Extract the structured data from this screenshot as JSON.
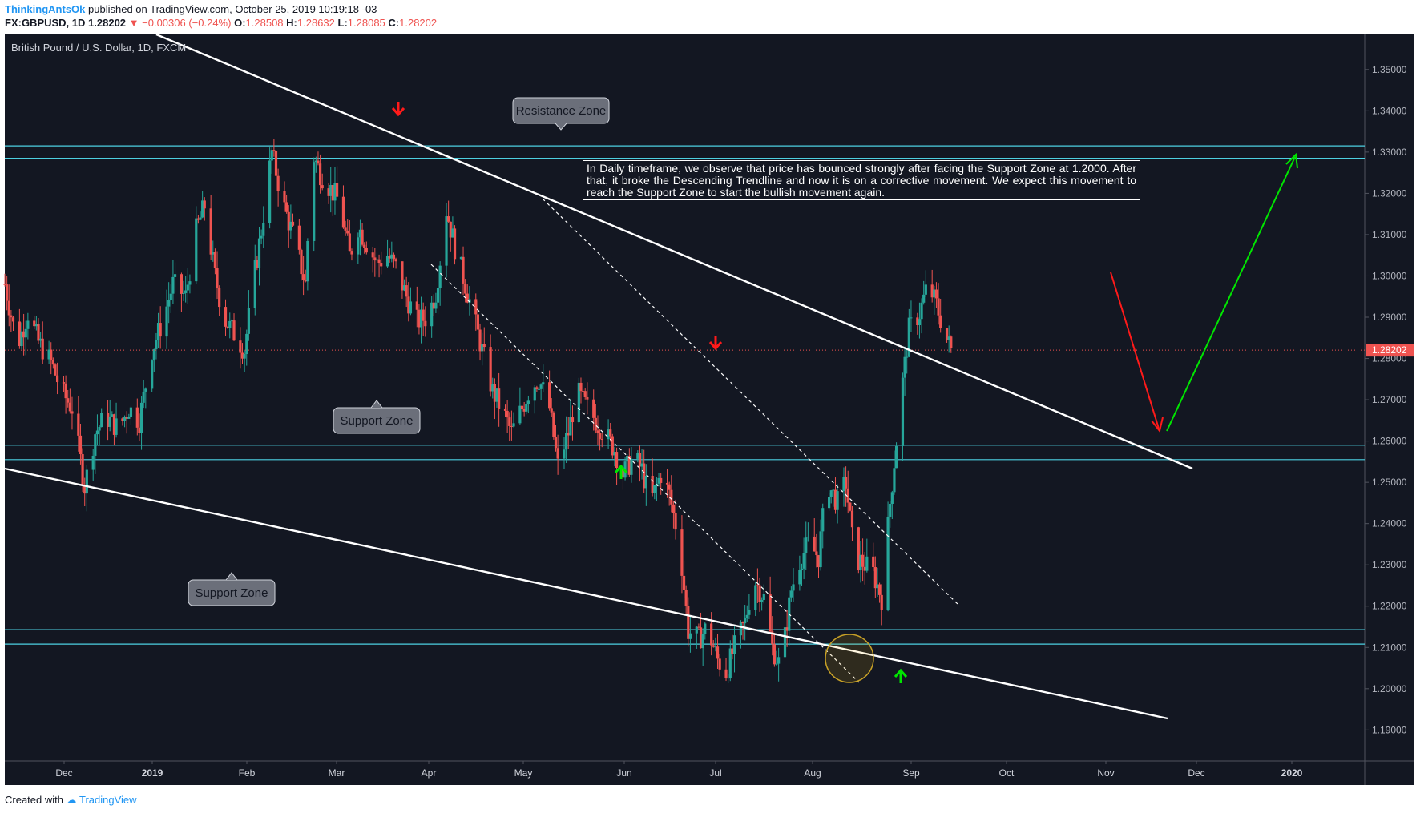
{
  "header": {
    "author": "ThinkingAntsOk",
    "published": "published on TradingView.com, October 25, 2019 10:19:18 -03",
    "symbol": "FX:GBPUSD, 1D",
    "last": "1.28202",
    "change": "▼ −0.00306 (−0.24%)",
    "o_label": "O:",
    "o": "1.28508",
    "h_label": "H:",
    "h": "1.28632",
    "l_label": "L:",
    "l": "1.28085",
    "c_label": "C:",
    "c": "1.28202"
  },
  "legend": "British Pound / U.S. Dollar, 1D, FXCM",
  "footer": {
    "created_with": "Created with",
    "brand": "TradingView"
  },
  "colors": {
    "background": "#131722",
    "up": "#26a69a",
    "down": "#ef5350",
    "zone": "#4dd0e1",
    "trend": "#ffffff",
    "bull_arrow": "#00e600",
    "bear_arrow": "#ff1a1a"
  },
  "chart_data": {
    "type": "candlestick",
    "title": "British Pound / U.S. Dollar, 1D, FXCM",
    "x_ticks": [
      "Dec",
      "2019",
      "Feb",
      "Mar",
      "Apr",
      "May",
      "Jun",
      "Jul",
      "Aug",
      "Sep",
      "Oct",
      "Nov",
      "Dec",
      "2020"
    ],
    "y_ticks": [
      "1.35000",
      "1.34000",
      "1.33000",
      "1.32000",
      "1.31000",
      "1.30000",
      "1.29000",
      "1.28000",
      "1.27000",
      "1.26000",
      "1.25000",
      "1.24000",
      "1.23000",
      "1.22000",
      "1.21000",
      "1.20000",
      "1.19000"
    ],
    "ylim": [
      1.1825,
      1.3585
    ],
    "last_price": 1.28202,
    "last_price_label": "1.28202",
    "price_path": [
      [
        0,
        1.298
      ],
      [
        6,
        1.283
      ],
      [
        11,
        1.291
      ],
      [
        16,
        1.284
      ],
      [
        22,
        1.279
      ],
      [
        27,
        1.272
      ],
      [
        32,
        1.268
      ],
      [
        38,
        1.249
      ],
      [
        43,
        1.262
      ],
      [
        48,
        1.266
      ],
      [
        54,
        1.263
      ],
      [
        59,
        1.268
      ],
      [
        64,
        1.265
      ],
      [
        70,
        1.282
      ],
      [
        75,
        1.289
      ],
      [
        80,
        1.298
      ],
      [
        86,
        1.295
      ],
      [
        91,
        1.311
      ],
      [
        95,
        1.317
      ],
      [
        100,
        1.3
      ],
      [
        104,
        1.29
      ],
      [
        109,
        1.286
      ],
      [
        114,
        1.282
      ],
      [
        118,
        1.298
      ],
      [
        122,
        1.311
      ],
      [
        127,
        1.33
      ],
      [
        132,
        1.318
      ],
      [
        137,
        1.31
      ],
      [
        143,
        1.298
      ],
      [
        146,
        1.33
      ],
      [
        150,
        1.325
      ],
      [
        155,
        1.321
      ],
      [
        159,
        1.318
      ],
      [
        164,
        1.305
      ],
      [
        168,
        1.312
      ],
      [
        173,
        1.307
      ],
      [
        177,
        1.303
      ],
      [
        182,
        1.305
      ],
      [
        186,
        1.302
      ],
      [
        191,
        1.295
      ],
      [
        196,
        1.289
      ],
      [
        201,
        1.29
      ],
      [
        205,
        1.296
      ],
      [
        210,
        1.316
      ],
      [
        214,
        1.307
      ],
      [
        219,
        1.298
      ],
      [
        223,
        1.29
      ],
      [
        227,
        1.282
      ],
      [
        232,
        1.272
      ],
      [
        237,
        1.267
      ],
      [
        241,
        1.262
      ],
      [
        246,
        1.268
      ],
      [
        250,
        1.273
      ],
      [
        254,
        1.275
      ],
      [
        259,
        1.268
      ],
      [
        263,
        1.254
      ],
      [
        268,
        1.262
      ],
      [
        272,
        1.272
      ],
      [
        277,
        1.268
      ],
      [
        281,
        1.265
      ],
      [
        285,
        1.262
      ],
      [
        290,
        1.258
      ],
      [
        294,
        1.252
      ],
      [
        299,
        1.256
      ],
      [
        303,
        1.253
      ],
      [
        307,
        1.245
      ],
      [
        312,
        1.252
      ],
      [
        316,
        1.247
      ],
      [
        321,
        1.235
      ],
      [
        325,
        1.214
      ],
      [
        330,
        1.212
      ],
      [
        334,
        1.215
      ],
      [
        339,
        1.207
      ],
      [
        343,
        1.204
      ],
      [
        347,
        1.21
      ],
      [
        352,
        1.216
      ],
      [
        356,
        1.227
      ],
      [
        361,
        1.222
      ],
      [
        365,
        1.21
      ],
      [
        369,
        1.205
      ],
      [
        374,
        1.224
      ],
      [
        378,
        1.231
      ],
      [
        382,
        1.235
      ],
      [
        387,
        1.232
      ],
      [
        391,
        1.25
      ],
      [
        396,
        1.245
      ],
      [
        400,
        1.25
      ],
      [
        404,
        1.232
      ],
      [
        409,
        1.23
      ],
      [
        413,
        1.228
      ],
      [
        417,
        1.222
      ],
      [
        421,
        1.245
      ],
      [
        426,
        1.27
      ],
      [
        430,
        1.287
      ],
      [
        435,
        1.291
      ],
      [
        439,
        1.298
      ],
      [
        443,
        1.293
      ],
      [
        447,
        1.286
      ],
      [
        450,
        1.282
      ]
    ],
    "zones": [
      {
        "label": "Resistance Zone",
        "low": 1.3285,
        "high": 1.3315
      },
      {
        "label": "Support Zone",
        "low": 1.2555,
        "high": 1.259
      },
      {
        "label": "Support Zone",
        "low": 1.2108,
        "high": 1.2143
      }
    ],
    "annotation": "In Daily timeframe, we observe that price has bounced strongly after facing the Support Zone at 1.2000. After that, it broke the Descending Trendline and now it is on a corrective movement. We expect this movement to reach the Support Zone to start the bullish movement again."
  }
}
